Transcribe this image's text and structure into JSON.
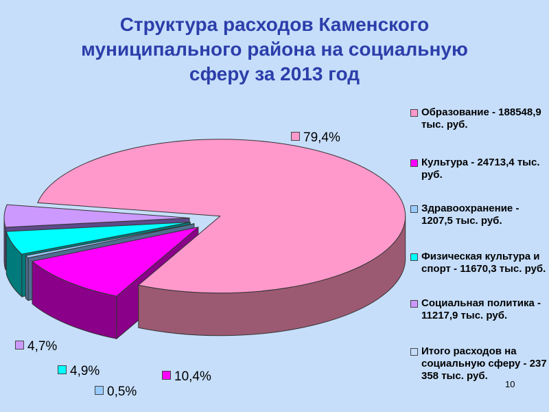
{
  "title_lines": [
    "Структура расходов Каменского",
    "муниципального района на социальную",
    "сферу за 2013 год"
  ],
  "page_number": "10",
  "chart_data": {
    "type": "pie",
    "title": "Структура расходов Каменского муниципального района на социальную сферу за 2013 год",
    "legend_position": "right",
    "slices": [
      {
        "name": "Образование",
        "legend": "Образование - 188548,9 тыс. руб.",
        "label": "79,4%",
        "value": 79.4,
        "color": "#ff99cc",
        "side": "#9c5a72"
      },
      {
        "name": "Культура",
        "legend": "Культура - 24713,4 тыс. руб.",
        "label": "10,4%",
        "value": 10.4,
        "color": "#ff00ff",
        "side": "#8a0088"
      },
      {
        "name": "Здравоохранение",
        "legend": "Здравоохранение - 1207,5 тыс. руб.",
        "label": "0,5%",
        "value": 0.5,
        "color": "#99ccff",
        "side": "#4f6f90"
      },
      {
        "name": "Физическая культура и спорт",
        "legend": "Физическая культура и спорт - 11670,3 тыс. руб.",
        "label": "4,9%",
        "value": 4.9,
        "color": "#00ffff",
        "side": "#007a7a"
      },
      {
        "name": "Социальная политика",
        "legend": "Социальная политика - 11217,9 тыс. руб.",
        "label": "4,7%",
        "value": 4.7,
        "color": "#cc99ff",
        "side": "#5e4a8a"
      }
    ],
    "total_legend": {
      "legend": "Итого расходов на социальную сферу - 237 358 тыс. руб.",
      "color": "#c6defa"
    }
  }
}
